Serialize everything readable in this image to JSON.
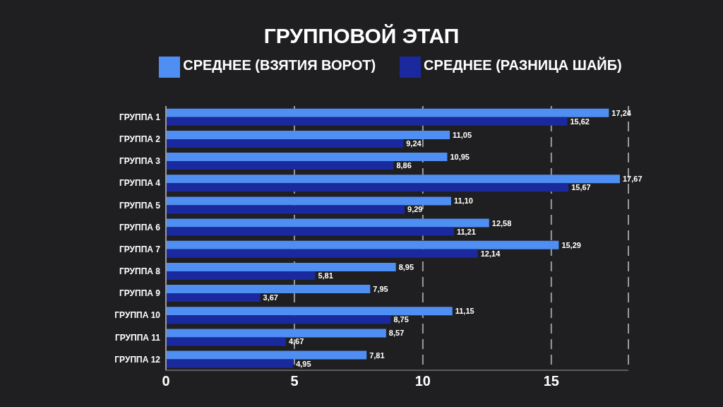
{
  "chart_data": {
    "type": "bar",
    "orientation": "horizontal",
    "title": "ГРУППОВОЙ ЭТАП",
    "categories": [
      "ГРУППА 1",
      "ГРУППА 2",
      "ГРУППА 3",
      "ГРУППА 4",
      "ГРУППА 5",
      "ГРУППА 6",
      "ГРУППА 7",
      "ГРУППА 8",
      "ГРУППА 9",
      "ГРУППА 10",
      "ГРУППА 11",
      "ГРУППА 12"
    ],
    "series": [
      {
        "name": "СРЕДНЕЕ (ВЗЯТИЯ ВОРОТ)",
        "color": "#4f8ef2",
        "values": [
          17.24,
          11.05,
          10.95,
          17.67,
          11.1,
          12.58,
          15.29,
          8.95,
          7.95,
          11.15,
          8.57,
          7.81
        ],
        "value_labels": [
          "17,24",
          "11,05",
          "10,95",
          "17,67",
          "11,10",
          "12,58",
          "15,29",
          "8,95",
          "7,95",
          "11,15",
          "8,57",
          "7,81"
        ]
      },
      {
        "name": "СРЕДНЕЕ (РАЗНИЦА ШАЙБ)",
        "color": "#1a2a9e",
        "values": [
          15.62,
          9.24,
          8.86,
          15.67,
          9.29,
          11.21,
          12.14,
          5.81,
          3.67,
          8.75,
          4.67,
          4.95
        ],
        "value_labels": [
          "15,62",
          "9,24",
          "8,86",
          "15,67",
          "9,29",
          "11,21",
          "12,14",
          "5,81",
          "3,67",
          "8,75",
          "4,67",
          "4,95"
        ]
      }
    ],
    "xlim": [
      0,
      18
    ],
    "xticks": [
      0,
      5,
      10,
      15
    ],
    "grid": "x",
    "legend": "top"
  }
}
